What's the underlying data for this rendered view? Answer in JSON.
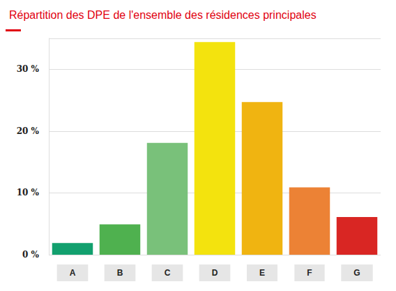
{
  "chart_data": {
    "type": "bar",
    "title": "Répartition des DPE de l'ensemble des résidences principales",
    "categories": [
      "A",
      "B",
      "C",
      "D",
      "E",
      "F",
      "G"
    ],
    "values": [
      1.9,
      4.9,
      18.1,
      34.4,
      24.7,
      10.9,
      6.1
    ],
    "colors": [
      "#12a06e",
      "#4fb14f",
      "#79c17a",
      "#f3e30e",
      "#f0b411",
      "#ec8235",
      "#d92623"
    ],
    "ylim": [
      0,
      35
    ],
    "yticks": [
      {
        "value": 0,
        "label": "0 %"
      },
      {
        "value": 10,
        "label": "10 %"
      },
      {
        "value": 20,
        "label": "20 %"
      },
      {
        "value": 30,
        "label": "30 %"
      }
    ],
    "grid": true
  }
}
